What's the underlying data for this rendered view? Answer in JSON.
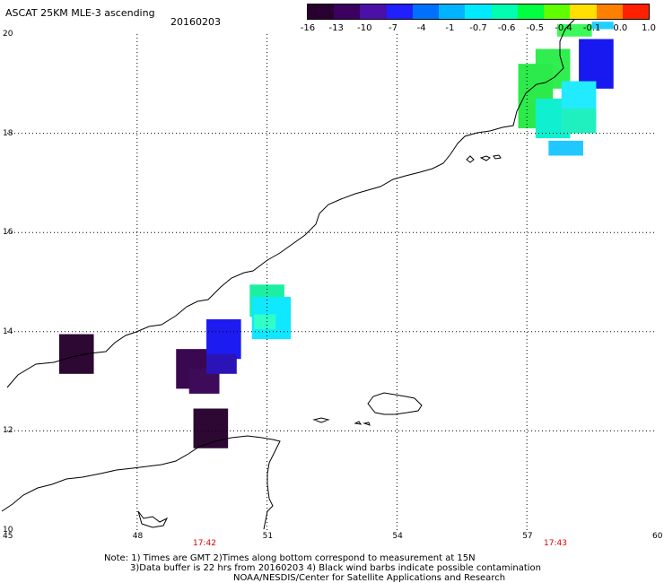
{
  "header": {
    "title": "ASCAT 25KM MLE-3 ascending",
    "date": "20160203"
  },
  "colorbar": {
    "ticks": [
      "-16",
      "-13",
      "-10",
      "-7",
      "-4",
      "-1",
      "-0.7",
      "-0.6",
      "-0.5",
      "-0.4",
      "-0.1",
      "0.0",
      "1.0"
    ],
    "colors": [
      "#2a0030",
      "#3c0060",
      "#4a10a8",
      "#2020ff",
      "#0070ff",
      "#00b4ff",
      "#00eaff",
      "#00ffb0",
      "#00ff40",
      "#60ff00",
      "#ffe000",
      "#ff8000",
      "#ff2000"
    ]
  },
  "axes": {
    "lon_labels": [
      "45",
      "48",
      "51",
      "54",
      "57",
      "60"
    ],
    "lat_labels": [
      "10",
      "12",
      "14",
      "16",
      "18",
      "20"
    ],
    "time_labels": [
      "17:42",
      "17:43"
    ]
  },
  "cells": [
    {
      "lon": 46.2,
      "lat": 13.15,
      "dlon": 0.8,
      "dlat": 0.8,
      "color": "#2d0833"
    },
    {
      "lon": 48.9,
      "lat": 12.85,
      "dlon": 0.95,
      "dlat": 0.8,
      "color": "#3a0850"
    },
    {
      "lon": 49.2,
      "lat": 12.75,
      "dlon": 0.7,
      "dlat": 0.5,
      "color": "#3d0b5a"
    },
    {
      "lon": 49.6,
      "lat": 13.45,
      "dlon": 0.8,
      "dlat": 0.8,
      "color": "#1c1cf0"
    },
    {
      "lon": 49.6,
      "lat": 13.15,
      "dlon": 0.7,
      "dlat": 0.4,
      "color": "#2a14b8"
    },
    {
      "lon": 49.3,
      "lat": 11.65,
      "dlon": 0.8,
      "dlat": 0.8,
      "color": "#2d0833"
    },
    {
      "lon": 50.6,
      "lat": 14.3,
      "dlon": 0.8,
      "dlat": 0.65,
      "color": "#1cf0a0"
    },
    {
      "lon": 50.65,
      "lat": 13.85,
      "dlon": 0.9,
      "dlat": 0.85,
      "color": "#10e8ff"
    },
    {
      "lon": 50.7,
      "lat": 14.05,
      "dlon": 0.5,
      "dlat": 0.3,
      "color": "#30ffc8"
    },
    {
      "lon": 57.7,
      "lat": 19.95,
      "dlon": 0.8,
      "dlat": 0.25,
      "color": "#3cf85a"
    },
    {
      "lon": 58.5,
      "lat": 20.1,
      "dlon": 0.5,
      "dlat": 0.15,
      "color": "#22d0ff"
    },
    {
      "lon": 57.2,
      "lat": 18.9,
      "dlon": 0.8,
      "dlat": 0.8,
      "color": "#30ee50"
    },
    {
      "lon": 58.2,
      "lat": 18.9,
      "dlon": 0.8,
      "dlat": 1.0,
      "color": "#1818f0"
    },
    {
      "lon": 56.8,
      "lat": 18.1,
      "dlon": 0.8,
      "dlat": 1.3,
      "color": "#2cea4a"
    },
    {
      "lon": 57.2,
      "lat": 17.9,
      "dlon": 0.8,
      "dlat": 0.8,
      "color": "#10f0d0"
    },
    {
      "lon": 57.8,
      "lat": 18.25,
      "dlon": 0.8,
      "dlat": 0.8,
      "color": "#22eaff"
    },
    {
      "lon": 57.5,
      "lat": 17.55,
      "dlon": 0.8,
      "dlat": 0.3,
      "color": "#20c8ff"
    },
    {
      "lon": 57.8,
      "lat": 18.0,
      "dlon": 0.8,
      "dlat": 0.5,
      "color": "#20f0c0"
    }
  ],
  "notes": {
    "line1": "Note: 1) Times are GMT 2)Times along bottom correspond to measurement at 15N",
    "line2": "3)Data buffer is 22 hrs from 20160203 4) Black wind barbs indicate possible contamination",
    "line3": "NOAA/NESDIS/Center for Satellite Applications and Research"
  }
}
